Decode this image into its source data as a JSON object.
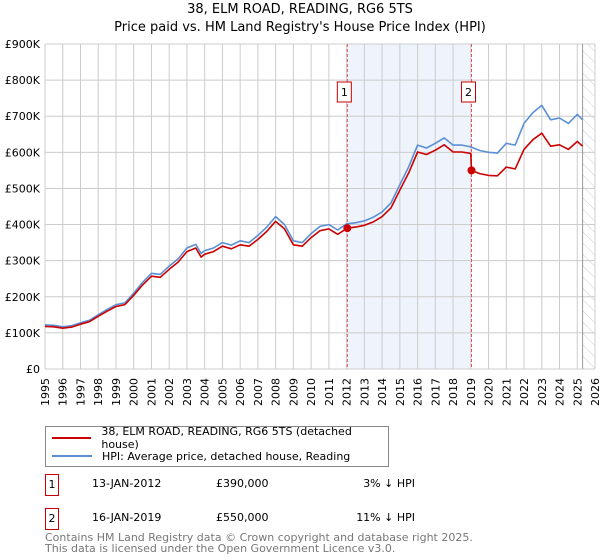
{
  "title": "38, ELM ROAD, READING, RG6 5TS",
  "subtitle": "Price paid vs. HM Land Registry's House Price Index (HPI)",
  "chart_data": {
    "type": "line",
    "title": "38, ELM ROAD, READING, RG6 5TS",
    "subtitle": "Price paid vs. HM Land Registry's House Price Index (HPI)",
    "xlim": [
      1995,
      2026
    ],
    "ylim": [
      0,
      900000
    ],
    "x_ticks": [
      "1995",
      "1996",
      "1997",
      "1998",
      "1999",
      "2000",
      "2001",
      "2002",
      "2003",
      "2004",
      "2005",
      "2006",
      "2007",
      "2008",
      "2009",
      "2010",
      "2011",
      "2012",
      "2013",
      "2014",
      "2015",
      "2016",
      "2017",
      "2018",
      "2019",
      "2020",
      "2021",
      "2022",
      "2023",
      "2024",
      "2025",
      "2026"
    ],
    "y_ticks": [
      {
        "value": 0,
        "label": "£0"
      },
      {
        "value": 100000,
        "label": "£100K"
      },
      {
        "value": 200000,
        "label": "£200K"
      },
      {
        "value": 300000,
        "label": "£300K"
      },
      {
        "value": 400000,
        "label": "£400K"
      },
      {
        "value": 500000,
        "label": "£500K"
      },
      {
        "value": 600000,
        "label": "£600K"
      },
      {
        "value": 700000,
        "label": "£700K"
      },
      {
        "value": 800000,
        "label": "£800K"
      },
      {
        "value": 900000,
        "label": "£900K"
      }
    ],
    "grid": true,
    "shaded_range": [
      2012.04,
      2019.04
    ],
    "forecast_hatch_from": 2025.3,
    "series": [
      {
        "name": "HPI: Average price, detached house, Reading",
        "color": "#5b8fd4",
        "x": [
          1995,
          1995.5,
          1996,
          1996.5,
          1997,
          1997.5,
          1998,
          1998.5,
          1999,
          1999.5,
          2000,
          2000.5,
          2001,
          2001.5,
          2002,
          2002.5,
          2003,
          2003.5,
          2003.8,
          2004,
          2004.5,
          2005,
          2005.5,
          2006,
          2006.5,
          2007,
          2007.5,
          2008,
          2008.5,
          2009,
          2009.5,
          2010,
          2010.5,
          2011,
          2011.5,
          2012,
          2012.5,
          2013,
          2013.5,
          2014,
          2014.5,
          2015,
          2015.5,
          2016,
          2016.5,
          2017,
          2017.5,
          2018,
          2018.5,
          2019,
          2019.5,
          2020,
          2020.5,
          2021,
          2021.5,
          2022,
          2022.5,
          2023,
          2023.5,
          2024,
          2024.5,
          2025,
          2025.3
        ],
        "y": [
          122,
          121,
          117,
          120,
          128,
          135,
          150,
          165,
          178,
          183,
          210,
          240,
          265,
          262,
          285,
          305,
          335,
          345,
          320,
          328,
          335,
          350,
          343,
          355,
          350,
          370,
          393,
          422,
          400,
          355,
          350,
          375,
          395,
          400,
          385,
          402,
          405,
          410,
          420,
          435,
          460,
          510,
          560,
          620,
          612,
          625,
          640,
          620,
          620,
          615,
          605,
          600,
          598,
          625,
          620,
          680,
          710,
          730,
          690,
          695,
          680,
          705,
          690
        ]
      },
      {
        "name": "38, ELM ROAD, READING, RG6 5TS (detached house)",
        "color": "#cc0000",
        "x": [
          1995,
          1995.5,
          1996,
          1996.5,
          1997,
          1997.5,
          1998,
          1998.5,
          1999,
          1999.5,
          2000,
          2000.5,
          2001,
          2001.5,
          2002,
          2002.5,
          2003,
          2003.5,
          2003.8,
          2004,
          2004.5,
          2005,
          2005.5,
          2006,
          2006.5,
          2007,
          2007.5,
          2008,
          2008.5,
          2009,
          2009.5,
          2010,
          2010.5,
          2011,
          2011.5,
          2012.04,
          2012.5,
          2013,
          2013.5,
          2014,
          2014.5,
          2015,
          2015.5,
          2016,
          2016.5,
          2017,
          2017.5,
          2018,
          2018.5,
          2019.0,
          2019.04,
          2019.5,
          2020,
          2020.5,
          2021,
          2021.5,
          2022,
          2022.5,
          2023,
          2023.5,
          2024,
          2024.5,
          2025,
          2025.3
        ],
        "y": [
          118,
          117,
          113,
          116,
          124,
          131,
          146,
          160,
          173,
          178,
          204,
          233,
          257,
          254,
          276,
          296,
          325,
          335,
          310,
          318,
          325,
          340,
          333,
          344,
          340,
          359,
          381,
          409,
          388,
          344,
          340,
          364,
          383,
          388,
          373,
          390,
          393,
          398,
          407,
          422,
          446,
          495,
          543,
          601,
          594,
          606,
          621,
          601,
          601,
          597,
          550,
          541,
          536,
          535,
          559,
          554,
          608,
          635,
          653,
          617,
          621,
          608,
          630,
          617
        ]
      }
    ],
    "y_unit": "thousands GBP",
    "sales": [
      {
        "label": "1",
        "x": 2012.04,
        "price": 390000
      },
      {
        "label": "2",
        "x": 2019.04,
        "price": 550000
      }
    ]
  },
  "legend": {
    "items": [
      {
        "label": "38, ELM ROAD, READING, RG6 5TS (detached house)",
        "color": "#cc0000"
      },
      {
        "label": "HPI: Average price, detached house, Reading",
        "color": "#5b8fd4"
      }
    ]
  },
  "transactions": [
    {
      "num": "1",
      "date": "13-JAN-2012",
      "price": "£390,000",
      "hpi": "3% ↓ HPI"
    },
    {
      "num": "2",
      "date": "16-JAN-2019",
      "price": "£550,000",
      "hpi": "11% ↓ HPI"
    }
  ],
  "footer": {
    "line1": "Contains HM Land Registry data © Crown copyright and database right 2025.",
    "line2": "This data is licensed under the Open Government Licence v3.0."
  }
}
